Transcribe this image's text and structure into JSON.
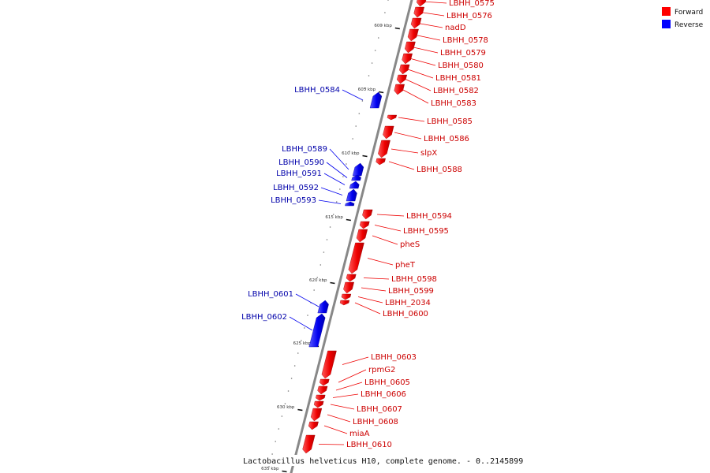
{
  "caption": "Lactobacillus helveticus H10, complete genome. - 0..2145899",
  "legend": [
    {
      "label": "Forward",
      "color": "#ff0000"
    },
    {
      "label": "Reverse",
      "color": "#0000ff"
    }
  ],
  "colors": {
    "forward": "#ff0000",
    "reverse": "#0000ff",
    "forward_label": "#cc0000",
    "reverse_label": "#0000aa",
    "backbone": "#888888"
  },
  "kbp_ticks": [
    "600 kbp",
    "605 kbp",
    "610 kbp",
    "615 kbp",
    "620 kbp",
    "625 kbp",
    "630 kbp",
    "635 kbp"
  ],
  "genes": [
    {
      "name": "LBHH_0575",
      "strand": "forward"
    },
    {
      "name": "LBHH_0576",
      "strand": "forward"
    },
    {
      "name": "nadD",
      "strand": "forward"
    },
    {
      "name": "LBHH_0578",
      "strand": "forward"
    },
    {
      "name": "LBHH_0579",
      "strand": "forward"
    },
    {
      "name": "LBHH_0580",
      "strand": "forward"
    },
    {
      "name": "LBHH_0581",
      "strand": "forward"
    },
    {
      "name": "LBHH_0582",
      "strand": "forward"
    },
    {
      "name": "LBHH_0583",
      "strand": "forward"
    },
    {
      "name": "LBHH_0584",
      "strand": "reverse"
    },
    {
      "name": "LBHH_0585",
      "strand": "forward"
    },
    {
      "name": "LBHH_0586",
      "strand": "forward"
    },
    {
      "name": "slpX",
      "strand": "forward"
    },
    {
      "name": "LBHH_0588",
      "strand": "forward"
    },
    {
      "name": "LBHH_0589",
      "strand": "reverse"
    },
    {
      "name": "LBHH_0590",
      "strand": "reverse"
    },
    {
      "name": "LBHH_0591",
      "strand": "reverse"
    },
    {
      "name": "LBHH_0592",
      "strand": "reverse"
    },
    {
      "name": "LBHH_0593",
      "strand": "reverse"
    },
    {
      "name": "LBHH_0594",
      "strand": "forward"
    },
    {
      "name": "LBHH_0595",
      "strand": "forward"
    },
    {
      "name": "pheS",
      "strand": "forward"
    },
    {
      "name": "pheT",
      "strand": "forward"
    },
    {
      "name": "LBHH_0598",
      "strand": "forward"
    },
    {
      "name": "LBHH_0599",
      "strand": "forward"
    },
    {
      "name": "LBHH_2034",
      "strand": "forward"
    },
    {
      "name": "LBHH_0600",
      "strand": "forward"
    },
    {
      "name": "LBHH_0601",
      "strand": "reverse"
    },
    {
      "name": "LBHH_0602",
      "strand": "reverse"
    },
    {
      "name": "LBHH_0603",
      "strand": "forward"
    },
    {
      "name": "rpmG2",
      "strand": "forward"
    },
    {
      "name": "LBHH_0605",
      "strand": "forward"
    },
    {
      "name": "LBHH_0606",
      "strand": "forward"
    },
    {
      "name": "LBHH_0607",
      "strand": "forward"
    },
    {
      "name": "LBHH_0608",
      "strand": "forward"
    },
    {
      "name": "miaA",
      "strand": "forward"
    },
    {
      "name": "LBHH_0610",
      "strand": "forward"
    }
  ]
}
